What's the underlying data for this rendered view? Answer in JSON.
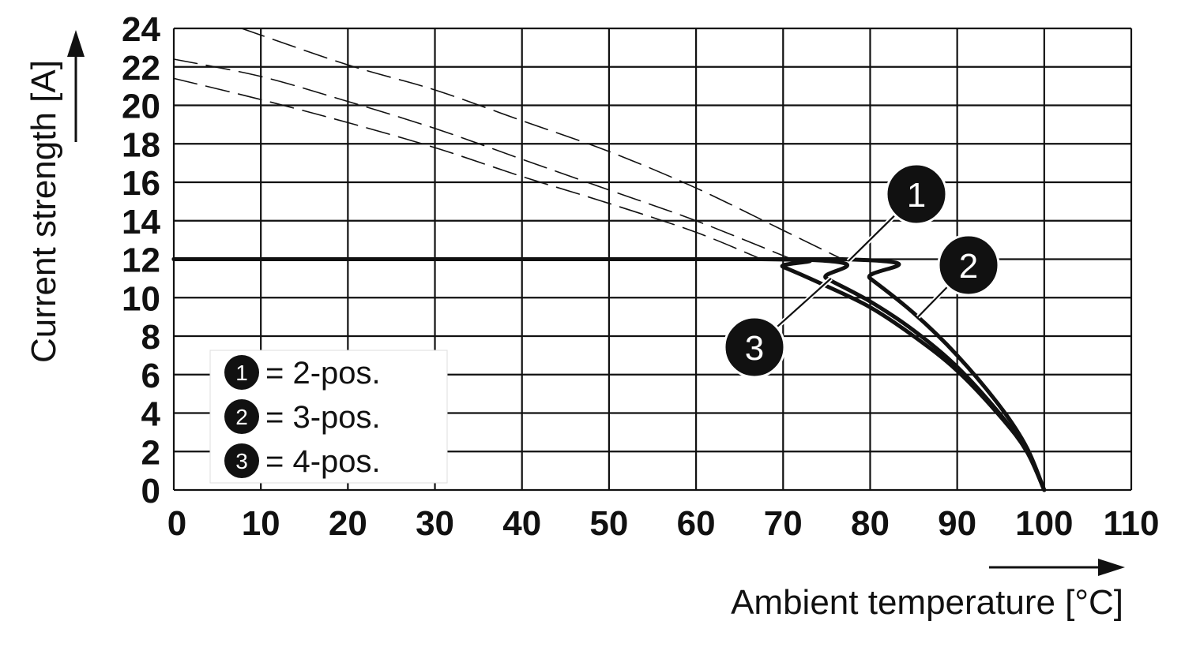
{
  "chart_data": {
    "type": "line",
    "xlabel": "Ambient temperature [°C]",
    "ylabel": "Current strength [A]",
    "xlim": [
      0,
      110
    ],
    "ylim": [
      0,
      24
    ],
    "xticks": [
      "0",
      "10",
      "20",
      "30",
      "40",
      "50",
      "60",
      "70",
      "80",
      "90",
      "100",
      "110"
    ],
    "yticks": [
      "0",
      "2",
      "4",
      "6",
      "8",
      "10",
      "12",
      "14",
      "16",
      "18",
      "20",
      "22",
      "24"
    ],
    "grid": true,
    "legend_position": "bottom-left",
    "legend": [
      {
        "id": "1",
        "text": "= 2-pos."
      },
      {
        "id": "2",
        "text": "= 3-pos."
      },
      {
        "id": "3",
        "text": "= 4-pos."
      }
    ],
    "series": [
      {
        "id": "1",
        "style": "solid",
        "x": [
          0,
          76.8,
          80,
          85,
          90,
          95,
          98,
          100
        ],
        "y": [
          12,
          12,
          11.0,
          9.2,
          7.0,
          4.3,
          2.2,
          0
        ]
      },
      {
        "id": "2",
        "style": "solid",
        "x": [
          0,
          71,
          75,
          80,
          85,
          90,
          95,
          98,
          100
        ],
        "y": [
          12,
          12,
          11.0,
          9.8,
          8.3,
          6.4,
          3.9,
          2.0,
          0
        ]
      },
      {
        "id": "3",
        "style": "solid",
        "x": [
          0,
          67.5,
          70,
          75,
          80,
          85,
          90,
          95,
          98,
          100
        ],
        "y": [
          12,
          12,
          11.6,
          10.6,
          9.5,
          8.0,
          6.2,
          3.8,
          2.0,
          0
        ]
      },
      {
        "id": "1",
        "style": "dashed",
        "x": [
          7.8,
          20,
          30,
          40,
          50,
          60,
          70,
          76.8
        ],
        "y": [
          24,
          22.1,
          20.8,
          19.2,
          17.6,
          15.7,
          13.5,
          12
        ]
      },
      {
        "id": "2",
        "style": "dashed",
        "x": [
          0,
          10,
          20,
          30,
          40,
          50,
          60,
          71
        ],
        "y": [
          22.4,
          21.5,
          20.2,
          18.8,
          17.2,
          15.6,
          14.0,
          12
        ]
      },
      {
        "id": "3",
        "style": "dashed",
        "x": [
          0,
          10,
          20,
          30,
          40,
          50,
          60,
          67.5
        ],
        "y": [
          21.4,
          20.3,
          19.1,
          17.8,
          16.3,
          14.9,
          13.4,
          12
        ]
      }
    ],
    "annotations": [
      {
        "id": "1",
        "points_to": {
          "x": 77.5,
          "y": 11.9
        }
      },
      {
        "id": "2",
        "points_to": {
          "x": 85.5,
          "y": 9.0
        }
      },
      {
        "id": "3",
        "points_to": {
          "x": 75.5,
          "y": 11.0
        }
      }
    ]
  }
}
